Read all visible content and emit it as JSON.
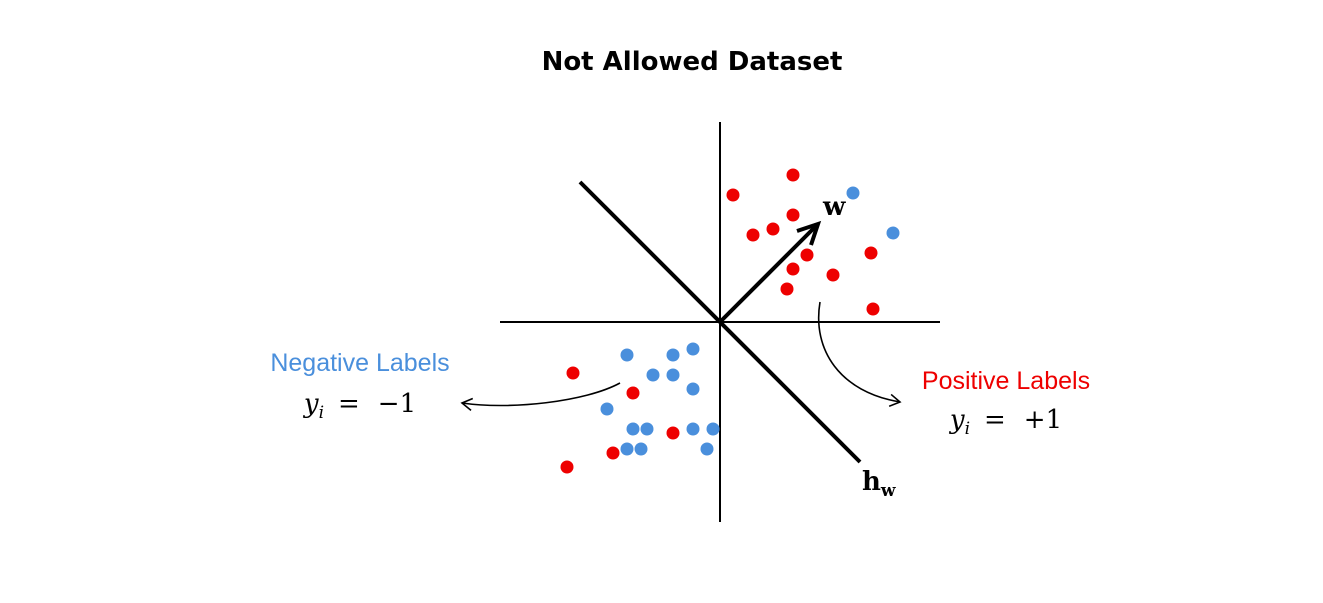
{
  "title": "Not Allowed Dataset",
  "colors": {
    "positive": "#ee0000",
    "negative": "#4a8fdc",
    "line": "#000000"
  },
  "vector_label": "w",
  "hyperplane_label": {
    "base": "h",
    "subscript": "w"
  },
  "negative_group": {
    "label": "Negative Labels",
    "equation": {
      "var": "y",
      "sub": "i",
      "eq": "=",
      "value": "−1"
    }
  },
  "positive_group": {
    "label": "Positive Labels",
    "equation": {
      "var": "y",
      "sub": "i",
      "eq": "=",
      "value": "+1"
    }
  }
}
